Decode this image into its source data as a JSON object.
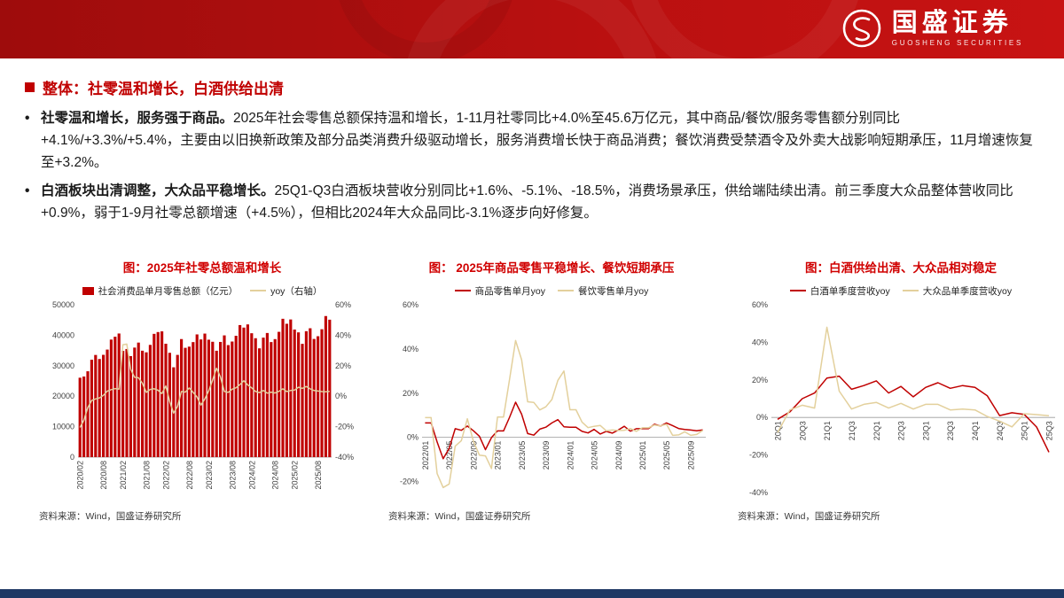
{
  "header": {
    "brand_cn": "国盛证券",
    "brand_en": "GUOSHENG SECURITIES"
  },
  "slide": {
    "bullet_char": "•",
    "title": "整体：社零温和增长，白酒供给出清",
    "bullets": [
      {
        "lead": "社零温和增长，服务强于商品。",
        "body": "2025年社会零售总额保持温和增长，1-11月社零同比+4.0%至45.6万亿元，其中商品/餐饮/服务零售额分别同比+4.1%/+3.3%/+5.4%，主要由以旧换新政策及部分品类消费升级驱动增长，服务消费增长快于商品消费；餐饮消费受禁酒令及外卖大战影响短期承压，11月增速恢复至+3.2%。"
      },
      {
        "lead": "白酒板块出清调整，大众品平稳增长。",
        "body": "25Q1-Q3白酒板块营收分别同比+1.6%、-5.1%、-18.5%，消费场景承压，供给端陆续出清。前三季度大众品整体营收同比+0.9%，弱于1-9月社零总额增速（+4.5%），但相比2024年大众品同比-3.1%逐步向好修复。"
      }
    ],
    "source": "资料来源：Wind，国盛证券研究所"
  },
  "colors": {
    "primary_red": "#c00000",
    "title_red": "#d00000",
    "header_red": "#b01010",
    "footer_navy": "#1f3864",
    "line_tan": "#e3d09c"
  },
  "chart_data": [
    {
      "type": "bar",
      "title": "图：2025年社零总额温和增长",
      "categories": [
        "2020/02",
        "2020/03",
        "2020/04",
        "2020/05",
        "2020/06",
        "2020/07",
        "2020/08",
        "2020/09",
        "2020/10",
        "2020/11",
        "2020/12",
        "2021/02",
        "2021/03",
        "2021/04",
        "2021/05",
        "2021/06",
        "2021/07",
        "2021/08",
        "2021/09",
        "2021/10",
        "2021/11",
        "2021/12",
        "2022/02",
        "2022/03",
        "2022/04",
        "2022/05",
        "2022/06",
        "2022/07",
        "2022/08",
        "2022/09",
        "2022/10",
        "2022/11",
        "2022/12",
        "2023/02",
        "2023/03",
        "2023/04",
        "2023/05",
        "2023/06",
        "2023/07",
        "2023/08",
        "2023/09",
        "2023/10",
        "2023/11",
        "2023/12",
        "2024/02",
        "2024/03",
        "2024/04",
        "2024/05",
        "2024/06",
        "2024/07",
        "2024/08",
        "2024/09",
        "2024/10",
        "2024/11",
        "2024/12",
        "2025/02",
        "2025/03",
        "2025/04",
        "2025/05",
        "2025/06",
        "2025/07",
        "2025/08",
        "2025/09",
        "2025/10",
        "2025/11"
      ],
      "series": [
        {
          "name": "社会消费品单月零售总额（亿元）",
          "type": "bar",
          "axis": "left",
          "color": "#c00000",
          "values": [
            26065,
            26450,
            28178,
            31973,
            33526,
            32203,
            33571,
            35295,
            38576,
            39514,
            40566,
            34869,
            35484,
            33153,
            35945,
            37586,
            34925,
            34395,
            36833,
            40454,
            41043,
            41269,
            37213,
            34233,
            29483,
            33547,
            38742,
            35870,
            36258,
            37745,
            40271,
            38615,
            40542,
            38534,
            37855,
            34910,
            37803,
            39951,
            36761,
            37933,
            39826,
            43333,
            42505,
            43550,
            40654,
            39020,
            35699,
            39211,
            40732,
            37757,
            38726,
            41112,
            45396,
            43763,
            45172,
            41866,
            40940,
            37174,
            41326,
            42287,
            38780,
            39668,
            41971,
            46291,
            45100
          ]
        },
        {
          "name": "yoy（右轴）",
          "type": "line",
          "axis": "right",
          "color": "#e3d09c",
          "values": [
            -20.5,
            -15.8,
            -7.5,
            -2.8,
            -1.8,
            -1.1,
            0.5,
            3.3,
            4.3,
            5.0,
            4.6,
            33.8,
            34.2,
            17.7,
            12.4,
            12.1,
            8.5,
            2.5,
            4.4,
            4.9,
            3.9,
            1.7,
            6.7,
            -3.5,
            -11.1,
            -6.7,
            3.1,
            2.7,
            5.4,
            2.5,
            -0.5,
            -5.9,
            -1.8,
            3.5,
            10.6,
            18.4,
            12.7,
            3.1,
            2.5,
            4.6,
            5.5,
            7.6,
            10.1,
            7.4,
            5.5,
            3.1,
            2.3,
            3.7,
            2.0,
            2.7,
            2.1,
            3.2,
            4.8,
            3.0,
            3.7,
            4.0,
            5.9,
            5.1,
            6.4,
            4.8,
            3.7,
            3.4,
            3.0,
            2.9,
            3.2
          ]
        }
      ],
      "y_left": {
        "min": 0,
        "max": 50000,
        "ticks": [
          0,
          10000,
          20000,
          30000,
          40000,
          50000
        ],
        "format": "plain"
      },
      "y_right": {
        "min": -40,
        "max": 60,
        "ticks": [
          -40,
          -20,
          0,
          20,
          40,
          60
        ],
        "format": "percent"
      },
      "x_ticks": [
        "2020/02",
        "2020/08",
        "2021/02",
        "2021/08",
        "2022/02",
        "2022/08",
        "2023/02",
        "2023/08",
        "2024/02",
        "2024/08",
        "2025/02",
        "2025/08"
      ],
      "legend_position": "top"
    },
    {
      "type": "line",
      "title": "图： 2025年商品零售平稳增长、餐饮短期承压",
      "categories": [
        "2022/01",
        "2022/02",
        "2022/03",
        "2022/04",
        "2022/05",
        "2022/06",
        "2022/07",
        "2022/08",
        "2022/09",
        "2022/10",
        "2022/11",
        "2022/12",
        "2023/01",
        "2023/02",
        "2023/03",
        "2023/04",
        "2023/05",
        "2023/06",
        "2023/07",
        "2023/08",
        "2023/09",
        "2023/10",
        "2023/11",
        "2023/12",
        "2024/01",
        "2024/02",
        "2024/03",
        "2024/04",
        "2024/05",
        "2024/06",
        "2024/07",
        "2024/08",
        "2024/09",
        "2024/10",
        "2024/11",
        "2024/12",
        "2025/01",
        "2025/02",
        "2025/03",
        "2025/04",
        "2025/05",
        "2025/06",
        "2025/07",
        "2025/08",
        "2025/09",
        "2025/10",
        "2025/11"
      ],
      "series": [
        {
          "name": "商品零售单月yoy",
          "type": "line",
          "axis": "left",
          "color": "#c00000",
          "values": [
            6.5,
            6.5,
            -2.1,
            -9.7,
            -5.0,
            3.9,
            3.2,
            5.1,
            3.0,
            0.5,
            -5.6,
            -0.1,
            2.9,
            2.9,
            9.1,
            15.9,
            10.5,
            1.7,
            1.0,
            3.7,
            4.6,
            6.5,
            8.0,
            4.8,
            4.6,
            4.6,
            2.7,
            2.0,
            3.6,
            1.5,
            2.7,
            1.9,
            3.3,
            5.0,
            2.8,
            3.9,
            3.9,
            3.9,
            5.9,
            5.1,
            6.5,
            5.3,
            4.0,
            3.6,
            3.3,
            3.0,
            3.4
          ]
        },
        {
          "name": "餐饮零售单月yoy",
          "type": "line",
          "axis": "left",
          "color": "#e3d09c",
          "values": [
            8.9,
            8.9,
            -16.4,
            -22.7,
            -21.1,
            -4.0,
            -1.5,
            8.4,
            -1.7,
            -8.1,
            -8.4,
            -14.1,
            9.2,
            9.2,
            26.3,
            43.8,
            35.1,
            16.1,
            15.8,
            12.4,
            13.8,
            17.1,
            25.8,
            30.0,
            12.5,
            12.5,
            6.9,
            4.4,
            5.0,
            5.4,
            3.0,
            3.3,
            3.1,
            3.2,
            4.0,
            2.7,
            4.3,
            4.3,
            5.6,
            5.2,
            5.9,
            0.9,
            1.1,
            2.5,
            0.9,
            1.3,
            3.2
          ]
        }
      ],
      "y_left": {
        "min": -25,
        "max": 60,
        "ticks": [
          -20,
          0,
          20,
          40,
          60
        ],
        "format": "percent"
      },
      "x_ticks": [
        "2022/01",
        "2022/05",
        "2022/09",
        "2023/01",
        "2023/05",
        "2023/09",
        "2024/01",
        "2024/05",
        "2024/09",
        "2025/01",
        "2025/05",
        "2025/09"
      ],
      "legend_position": "top"
    },
    {
      "type": "line",
      "title": "图：白酒供给出清、大众品相对稳定",
      "categories": [
        "20Q1",
        "20Q2",
        "20Q3",
        "20Q4",
        "21Q1",
        "21Q2",
        "21Q3",
        "21Q4",
        "22Q1",
        "22Q2",
        "22Q3",
        "22Q4",
        "23Q1",
        "23Q2",
        "23Q3",
        "23Q4",
        "24Q1",
        "24Q2",
        "24Q3",
        "24Q4",
        "25Q1",
        "25Q2",
        "25Q3"
      ],
      "series": [
        {
          "name": "白酒单季度营收yoy",
          "type": "line",
          "axis": "left",
          "color": "#c00000",
          "values": [
            -1.0,
            3.0,
            10.0,
            13.0,
            21.0,
            22.0,
            15.0,
            17.0,
            19.5,
            13.0,
            16.5,
            11.0,
            16.0,
            18.5,
            15.5,
            17.0,
            16.0,
            11.5,
            1.0,
            2.5,
            1.6,
            -5.1,
            -18.5
          ]
        },
        {
          "name": "大众品单季度营收yoy",
          "type": "line",
          "axis": "left",
          "color": "#e3d09c",
          "values": [
            -8.0,
            4.0,
            6.5,
            5.0,
            48.0,
            14.0,
            4.5,
            7.0,
            8.0,
            5.0,
            7.5,
            4.5,
            7.0,
            7.0,
            4.0,
            4.5,
            4.0,
            0.5,
            -2.0,
            -5.0,
            2.0,
            1.5,
            0.9
          ]
        }
      ],
      "y_left": {
        "min": -40,
        "max": 60,
        "ticks": [
          -40,
          -20,
          0,
          20,
          40,
          60
        ],
        "format": "percent"
      },
      "x_ticks": [
        "20Q1",
        "20Q3",
        "21Q1",
        "21Q3",
        "22Q1",
        "22Q3",
        "23Q1",
        "23Q3",
        "24Q1",
        "24Q3",
        "25Q1",
        "25Q3"
      ],
      "legend_position": "top"
    }
  ]
}
